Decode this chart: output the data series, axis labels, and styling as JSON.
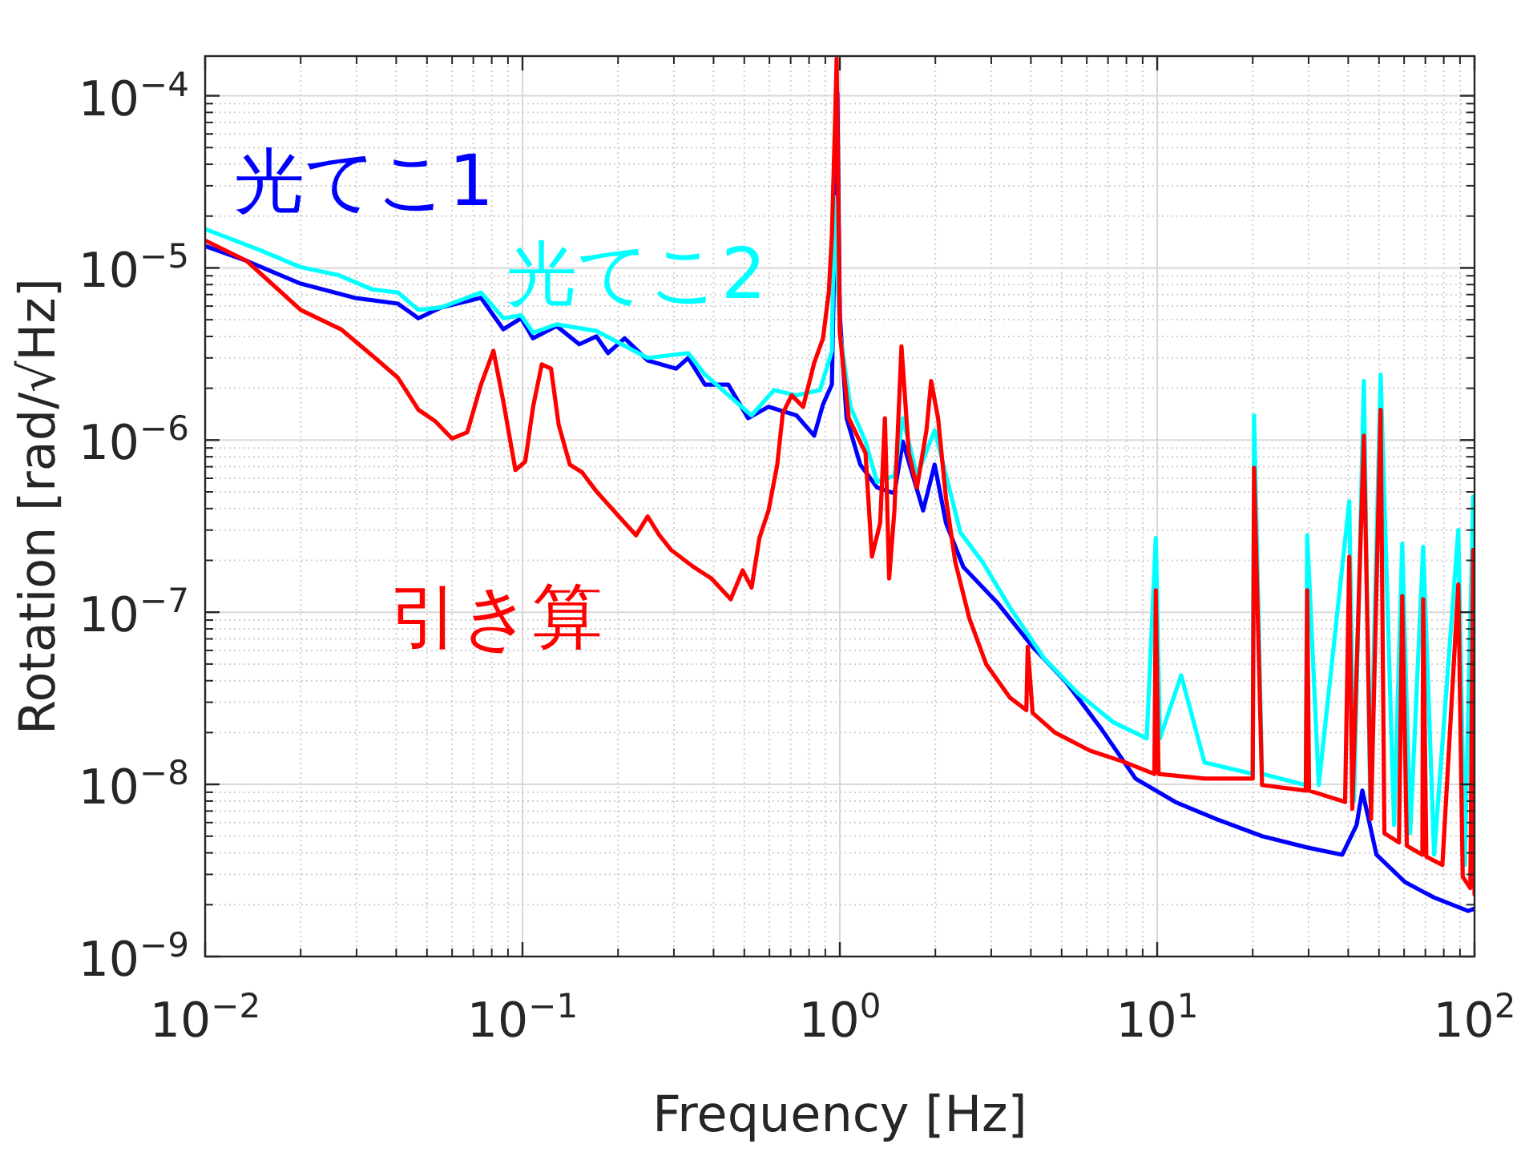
{
  "chart_data": {
    "type": "line",
    "xlabel": "Frequency [Hz]",
    "ylabel": "Rotation [rad/√Hz]",
    "log": "xy",
    "grid": true,
    "xlim": [
      0.01,
      100
    ],
    "ylim": [
      1e-09,
      0.00017
    ],
    "xticks": [
      {
        "value": 0.01,
        "label": "10$^{−2}$"
      },
      {
        "value": 0.1,
        "label": "10$^{−1}$"
      },
      {
        "value": 1,
        "label": "10$^{0}$"
      },
      {
        "value": 10,
        "label": "10$^{1}$"
      },
      {
        "value": 100,
        "label": "10$^{2}$"
      }
    ],
    "yticks": [
      {
        "value": 1e-09,
        "label": "10$^{−9}$"
      },
      {
        "value": 1e-08,
        "label": "10$^{−8}$"
      },
      {
        "value": 1e-07,
        "label": "10$^{−7}$"
      },
      {
        "value": 1e-06,
        "label": "10$^{−6}$"
      },
      {
        "value": 1e-05,
        "label": "10$^{−5}$"
      },
      {
        "value": 0.0001,
        "label": "10$^{−4}$"
      }
    ],
    "series": [
      {
        "name": "光てこ1",
        "color": "#0000ff",
        "x": [
          0.0101,
          0.0135,
          0.02,
          0.0296,
          0.0405,
          0.047,
          0.0555,
          0.074,
          0.087,
          0.099,
          0.108,
          0.128,
          0.151,
          0.171,
          0.186,
          0.21,
          0.248,
          0.305,
          0.333,
          0.376,
          0.445,
          0.514,
          0.596,
          0.73,
          0.83,
          0.885,
          0.944,
          0.982,
          1.0,
          1.05,
          1.16,
          1.31,
          1.486,
          1.58,
          1.83,
          1.99,
          2.16,
          2.45,
          3.13,
          4.05,
          5.18,
          6.67,
          8.55,
          11.4,
          15.3,
          21.4,
          29.7,
          38.3,
          42.5,
          44.3,
          49.1,
          60.5,
          74.6,
          95.5,
          100
        ],
        "values": [
          1.33e-05,
          1.1e-05,
          8.1e-06,
          6.7e-06,
          6.2e-06,
          5.1e-06,
          5.9e-06,
          6.7e-06,
          4.4e-06,
          5.1e-06,
          3.9e-06,
          4.6e-06,
          3.6e-06,
          4e-06,
          3.2e-06,
          3.9e-06,
          2.9e-06,
          2.6e-06,
          3e-06,
          2.1e-06,
          2.1e-06,
          1.34e-06,
          1.56e-06,
          1.39e-06,
          1.06e-06,
          1.61e-06,
          2.1e-06,
          0.000104,
          5.3e-06,
          1.34e-06,
          7.2e-07,
          5.3e-07,
          4.9e-07,
          9.8e-07,
          3.9e-07,
          7.2e-07,
          3.3e-07,
          1.83e-07,
          1.14e-07,
          6.3e-08,
          3.9e-08,
          2.1e-08,
          1.08e-08,
          7.9e-09,
          6.3e-09,
          5e-09,
          4.3e-09,
          3.9e-09,
          5.8e-09,
          9.2e-09,
          3.9e-09,
          2.7e-09,
          2.2e-09,
          1.84e-09,
          1.9e-09
        ]
      },
      {
        "name": "光てこ2",
        "color": "#00ffff",
        "x": [
          0.0101,
          0.0147,
          0.02,
          0.0262,
          0.0336,
          0.0405,
          0.047,
          0.0555,
          0.074,
          0.087,
          0.099,
          0.108,
          0.128,
          0.171,
          0.248,
          0.333,
          0.376,
          0.527,
          0.62,
          0.73,
          0.866,
          0.944,
          0.961,
          1.0,
          1.08,
          1.205,
          1.31,
          1.486,
          1.58,
          1.75,
          1.99,
          2.4,
          2.82,
          3.43,
          4.4,
          5.61,
          7.26,
          9.27,
          9.9,
          10.2,
          11.9,
          14.1,
          20.0,
          20.2,
          21.4,
          29.4,
          29.7,
          32.3,
          40.3,
          41.7,
          44.8,
          46.9,
          50.6,
          55.8,
          59.2,
          62.7,
          68.9,
          74.6,
          88.9,
          93.2,
          99
        ],
        "values": [
          1.67e-05,
          1.28e-05,
          1.01e-05,
          9.1e-06,
          7.5e-06,
          7.2e-06,
          5.7e-06,
          5.9e-06,
          7.2e-06,
          5.1e-06,
          5.3e-06,
          4.2e-06,
          4.7e-06,
          4.3e-06,
          3e-06,
          3.2e-06,
          2.4e-06,
          1.39e-06,
          1.95e-06,
          1.82e-06,
          1.95e-06,
          3.3e-06,
          2.6e-05,
          4.2e-06,
          1.56e-06,
          9.8e-07,
          5.7e-07,
          6.2e-07,
          1.34e-06,
          6.2e-07,
          1.14e-06,
          2.9e-07,
          1.95e-07,
          1.07e-07,
          5.4e-08,
          3.4e-08,
          2.3e-08,
          1.85e-08,
          2.7e-07,
          1.85e-08,
          4.3e-08,
          1.34e-08,
          1.15e-08,
          1.39e-06,
          1.15e-08,
          9.9e-09,
          2.8e-07,
          9.9e-09,
          4.4e-07,
          8e-09,
          2.2e-06,
          8e-09,
          2.4e-06,
          5.8e-09,
          2.5e-07,
          5.2e-09,
          2.4e-07,
          3.9e-09,
          3e-07,
          3.4e-09,
          4.7e-07
        ]
      },
      {
        "name": "引き算",
        "color": "#ff0000",
        "x": [
          0.0101,
          0.0135,
          0.02,
          0.0268,
          0.0336,
          0.0405,
          0.047,
          0.053,
          0.06,
          0.067,
          0.074,
          0.081,
          0.087,
          0.095,
          0.102,
          0.108,
          0.115,
          0.123,
          0.13,
          0.141,
          0.154,
          0.17,
          0.21,
          0.228,
          0.248,
          0.27,
          0.294,
          0.346,
          0.394,
          0.453,
          0.494,
          0.527,
          0.558,
          0.596,
          0.635,
          0.661,
          0.705,
          0.766,
          0.83,
          0.885,
          0.923,
          0.944,
          0.966,
          0.977,
          1.0,
          1.067,
          1.205,
          1.262,
          1.34,
          1.387,
          1.43,
          1.486,
          1.564,
          1.65,
          1.75,
          1.875,
          1.94,
          2.04,
          2.16,
          2.31,
          2.56,
          2.89,
          3.43,
          3.87,
          3.91,
          4.05,
          4.76,
          6.14,
          7.87,
          9.8,
          9.9,
          10.1,
          14.1,
          20.0,
          20.2,
          21.4,
          29.4,
          29.7,
          30.1,
          39.1,
          40.3,
          41.2,
          44.8,
          47.2,
          50.6,
          52.0,
          57.8,
          59.2,
          61.2,
          68.5,
          68.9,
          70.5,
          79.2,
          88.9,
          91.8,
          97,
          99,
          100
        ],
        "values": [
          1.43e-05,
          1.1e-05,
          5.7e-06,
          4.4e-06,
          3.1e-06,
          2.3e-06,
          1.5e-06,
          1.29e-06,
          1.02e-06,
          1.11e-06,
          2.1e-06,
          3.3e-06,
          1.68e-06,
          6.7e-07,
          7.5e-07,
          1.56e-06,
          2.75e-06,
          2.6e-06,
          1.23e-06,
          7.2e-07,
          6.5e-07,
          5.1e-07,
          3.3e-07,
          2.8e-07,
          3.6e-07,
          2.8e-07,
          2.3e-07,
          1.83e-07,
          1.57e-07,
          1.19e-07,
          1.75e-07,
          1.39e-07,
          2.7e-07,
          3.9e-07,
          7.2e-07,
          1.43e-06,
          1.82e-06,
          1.56e-06,
          2.8e-06,
          3.9e-06,
          7.2e-06,
          1.55e-05,
          7.1e-05,
          0.000164,
          4.2e-06,
          1.34e-06,
          8.4e-07,
          2.1e-07,
          3.3e-07,
          1.34e-06,
          1.57e-07,
          3.9e-07,
          3.5e-06,
          8.4e-07,
          5.3e-07,
          1.14e-06,
          2.2e-06,
          1.34e-06,
          4.6e-07,
          1.96e-07,
          9.2e-08,
          5e-08,
          3.2e-08,
          2.7e-08,
          6.3e-08,
          2.6e-08,
          2e-08,
          1.57e-08,
          1.35e-08,
          1.15e-08,
          1.34e-07,
          1.15e-08,
          1.08e-08,
          1.08e-08,
          6.9e-07,
          9.9e-09,
          9.2e-09,
          1.34e-07,
          9.2e-09,
          7.9e-09,
          2.1e-07,
          7.2e-09,
          1.06e-06,
          6.3e-09,
          1.5e-06,
          5.2e-09,
          4.6e-09,
          1.24e-07,
          4.4e-09,
          3.9e-09,
          1.19e-07,
          3.8e-09,
          3.4e-09,
          1.45e-07,
          2.9e-09,
          2.5e-09,
          2.3e-07,
          2.3e-09
        ]
      }
    ]
  }
}
